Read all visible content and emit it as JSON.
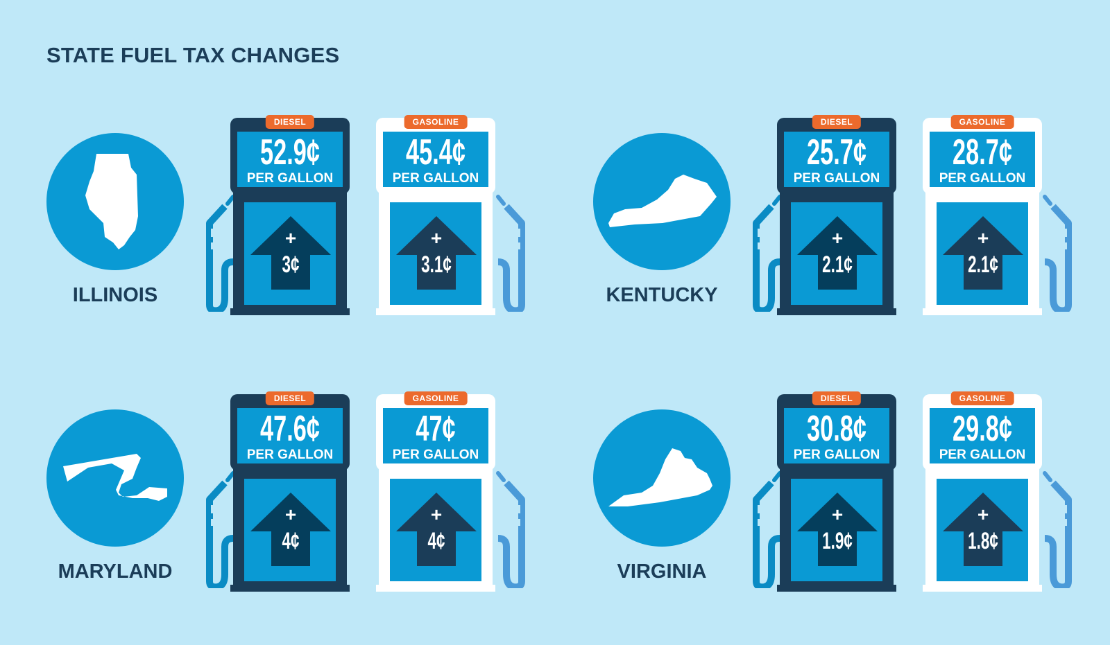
{
  "title": "STATE FUEL TAX CHANGES",
  "labels": {
    "diesel": "DIESEL",
    "gasoline": "GASOLINE",
    "per_gallon": "PER GALLON",
    "plus": "+"
  },
  "colors": {
    "background": "#bfe8f8",
    "accent_blue": "#0a9ad4",
    "navy": "#1b3d58",
    "tag_orange": "#ec6a2c"
  },
  "states": [
    {
      "name": "ILLINOIS",
      "diesel": {
        "price": "52.9¢",
        "increase": "3¢"
      },
      "gasoline": {
        "price": "45.4¢",
        "increase": "3.1¢"
      }
    },
    {
      "name": "KENTUCKY",
      "diesel": {
        "price": "25.7¢",
        "increase": "2.1¢"
      },
      "gasoline": {
        "price": "28.7¢",
        "increase": "2.1¢"
      }
    },
    {
      "name": "MARYLAND",
      "diesel": {
        "price": "47.6¢",
        "increase": "4¢"
      },
      "gasoline": {
        "price": "47¢",
        "increase": "4¢"
      }
    },
    {
      "name": "VIRGINIA",
      "diesel": {
        "price": "30.8¢",
        "increase": "1.9¢"
      },
      "gasoline": {
        "price": "29.8¢",
        "increase": "1.8¢"
      }
    }
  ]
}
